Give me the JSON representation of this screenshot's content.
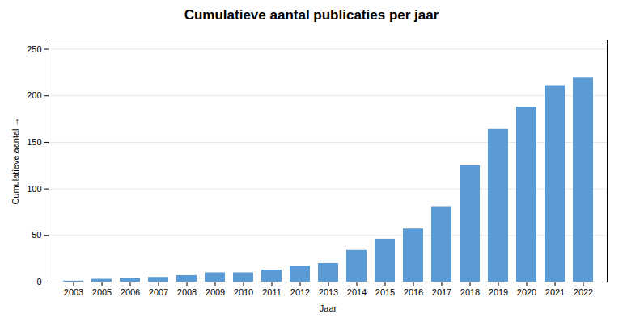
{
  "chart_data": {
    "type": "bar",
    "title": "Cumulatieve aantal publicaties per jaar",
    "xlabel": "Jaar",
    "ylabel": "Cumulatieve aantal",
    "categories": [
      "2003",
      "2005",
      "2006",
      "2007",
      "2008",
      "2009",
      "2010",
      "2011",
      "2012",
      "2013",
      "2014",
      "2015",
      "2016",
      "2017",
      "2018",
      "2019",
      "2020",
      "2021",
      "2022"
    ],
    "values": [
      1,
      3,
      4,
      5,
      7,
      10,
      10,
      13,
      17,
      20,
      34,
      46,
      57,
      81,
      125,
      164,
      188,
      211,
      219
    ],
    "color": "#5B9BD5",
    "ylim": [
      0,
      260
    ],
    "yticks": [
      0,
      50,
      100,
      150,
      200,
      250
    ],
    "grid": true
  }
}
